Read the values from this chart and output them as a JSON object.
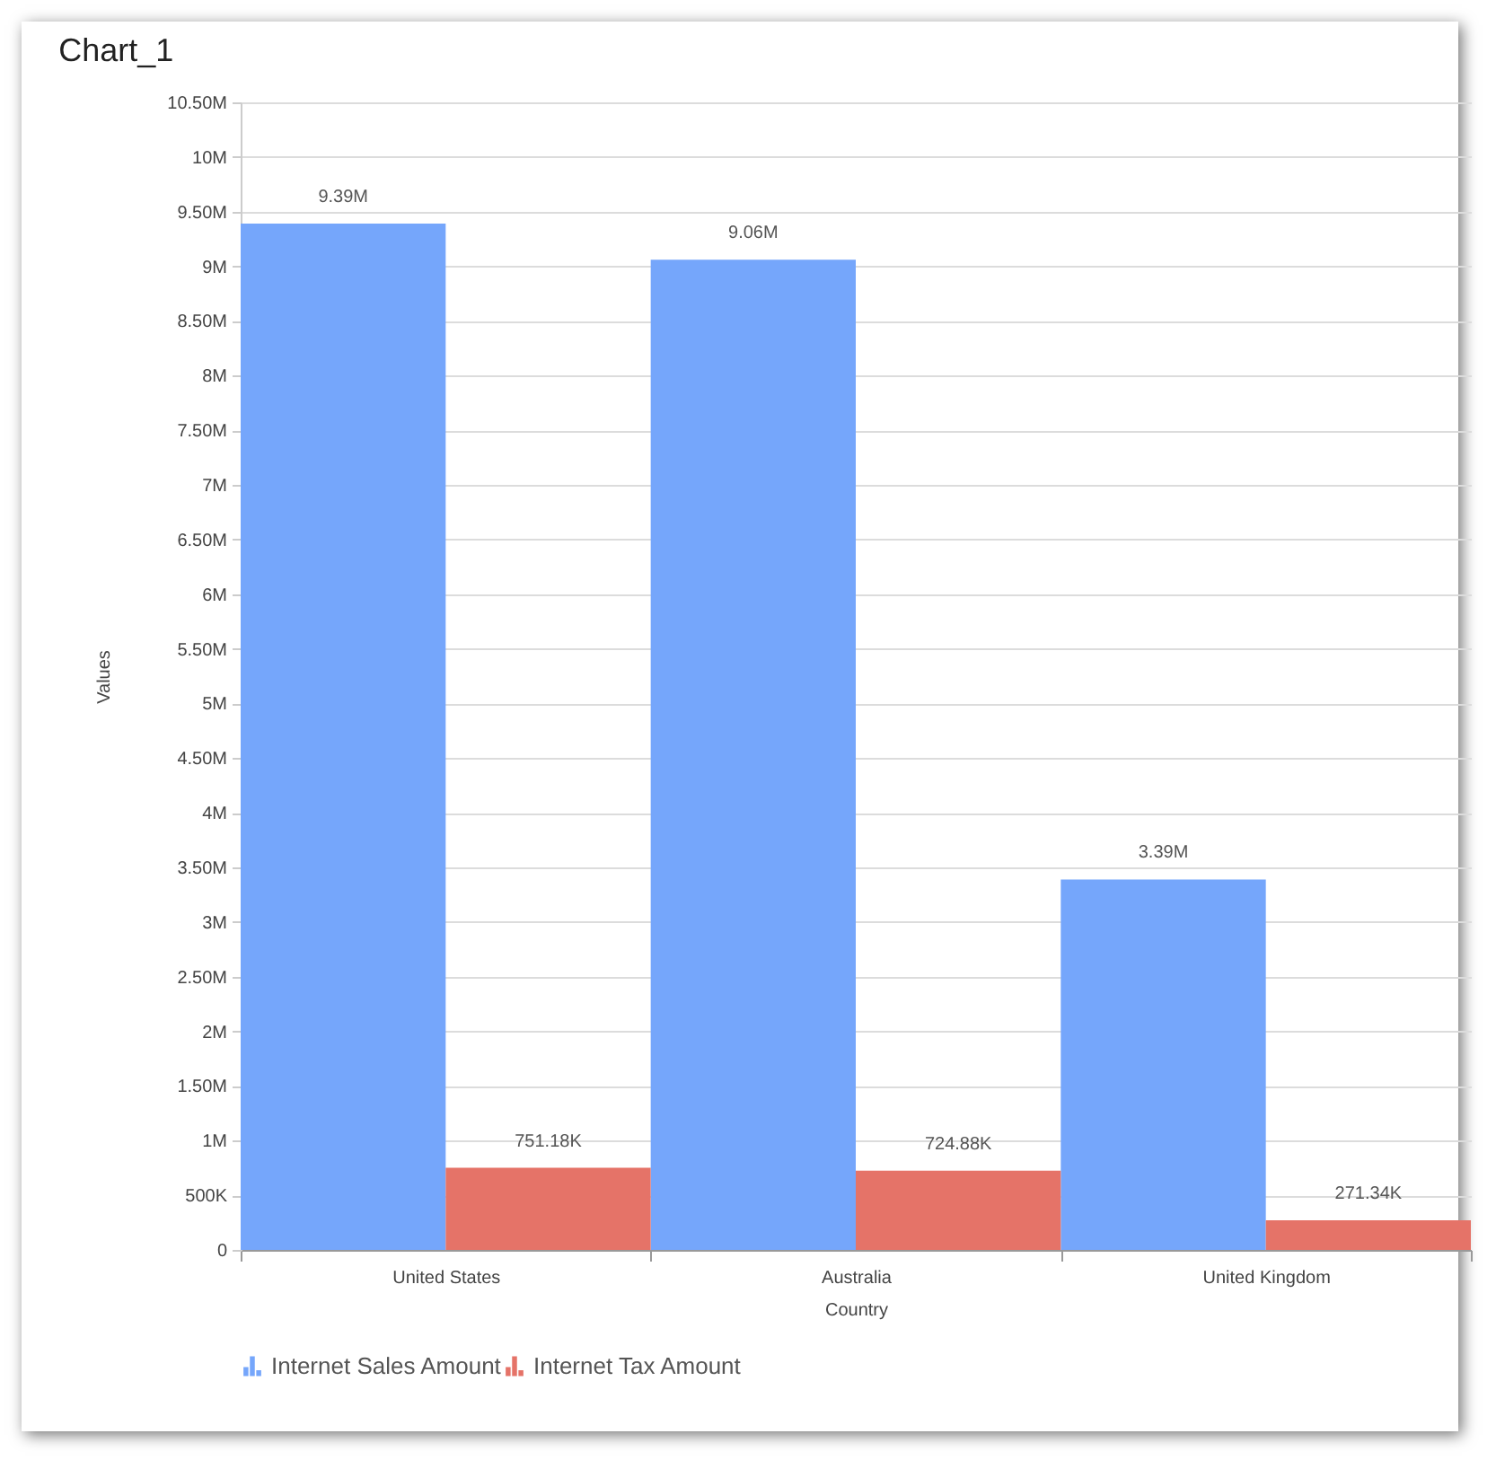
{
  "chart_data": {
    "type": "bar",
    "title": "Chart_1",
    "xlabel": "Country",
    "ylabel": "Values",
    "categories": [
      "United States",
      "Australia",
      "United Kingdom"
    ],
    "series": [
      {
        "name": "Internet Sales Amount",
        "color": "#75a6fb",
        "values": [
          9390000,
          9060000,
          3390000
        ],
        "value_labels": [
          "9.39M",
          "9.06M",
          "3.39M"
        ]
      },
      {
        "name": "Internet Tax Amount",
        "color": "#e57368",
        "values": [
          751180,
          724880,
          271340
        ],
        "value_labels": [
          "751.18K",
          "724.88K",
          "271.34K"
        ]
      }
    ],
    "ylim": [
      0,
      10500000
    ],
    "yticks": [
      0,
      {
        "value": 500000,
        "label": "500K"
      },
      {
        "value": 1000000,
        "label": "1M"
      },
      {
        "value": 1500000,
        "label": "1.50M"
      },
      {
        "value": 2000000,
        "label": "2M"
      },
      {
        "value": 2500000,
        "label": "2.50M"
      },
      {
        "value": 3000000,
        "label": "3M"
      },
      {
        "value": 3500000,
        "label": "3.50M"
      },
      {
        "value": 4000000,
        "label": "4M"
      },
      {
        "value": 4500000,
        "label": "4.50M"
      },
      {
        "value": 5000000,
        "label": "5M"
      },
      {
        "value": 5500000,
        "label": "5.50M"
      },
      {
        "value": 6000000,
        "label": "6M"
      },
      {
        "value": 6500000,
        "label": "6.50M"
      },
      {
        "value": 7000000,
        "label": "7M"
      },
      {
        "value": 7500000,
        "label": "7.50M"
      },
      {
        "value": 8000000,
        "label": "8M"
      },
      {
        "value": 8500000,
        "label": "8.50M"
      },
      {
        "value": 9000000,
        "label": "9M"
      },
      {
        "value": 9500000,
        "label": "9.50M"
      },
      {
        "value": 10000000,
        "label": "10M"
      },
      {
        "value": 10500000,
        "label": "10.50M"
      }
    ],
    "grid": "y",
    "legend": "bottom"
  }
}
